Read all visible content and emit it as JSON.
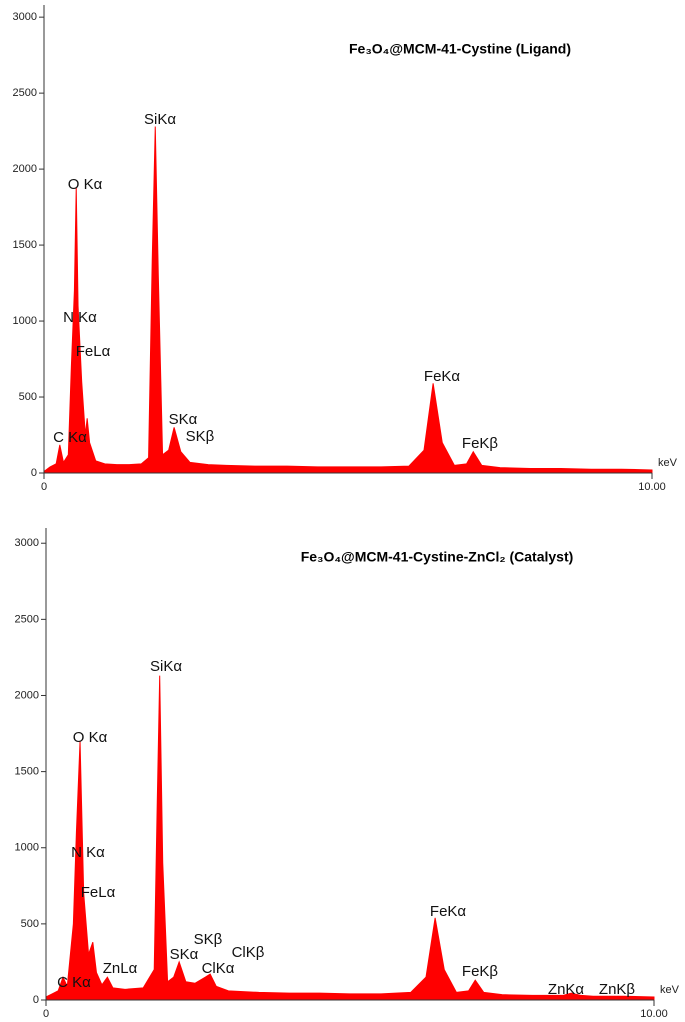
{
  "chart_data": [
    {
      "type": "area",
      "title": "Fe₃O₄@MCM-41-Cystine (Ligand)",
      "x_label": "keV",
      "color": "#ff0000",
      "x": [
        0.0,
        0.1,
        0.2,
        0.26,
        0.32,
        0.4,
        0.45,
        0.5,
        0.53,
        0.56,
        0.62,
        0.68,
        0.71,
        0.75,
        0.85,
        1.0,
        1.2,
        1.4,
        1.6,
        1.72,
        1.78,
        1.83,
        1.88,
        1.95,
        2.05,
        2.14,
        2.25,
        2.4,
        2.7,
        3.0,
        3.5,
        4.0,
        4.5,
        5.0,
        5.5,
        6.0,
        6.25,
        6.4,
        6.55,
        6.75,
        6.95,
        7.06,
        7.2,
        7.5,
        8.0,
        8.5,
        9.0,
        9.5,
        10.0
      ],
      "values": [
        10,
        40,
        60,
        185,
        70,
        120,
        700,
        1200,
        1880,
        1100,
        600,
        250,
        360,
        200,
        80,
        60,
        55,
        55,
        60,
        100,
        1400,
        2280,
        1300,
        120,
        150,
        300,
        140,
        70,
        55,
        50,
        45,
        45,
        40,
        40,
        40,
        45,
        150,
        590,
        200,
        50,
        60,
        140,
        50,
        35,
        30,
        30,
        25,
        25,
        20
      ],
      "xlim": [
        0,
        10
      ],
      "xticks": [
        0,
        {
          "value": 10,
          "label": "10.00"
        }
      ],
      "ylim": [
        0,
        3080
      ],
      "yticks": [
        0,
        500,
        1000,
        1500,
        2000,
        2500,
        3000
      ],
      "annotations": [
        "SiKα",
        "O Kα",
        "N Kα",
        "FeLα",
        "FeKα",
        "SKα",
        "SKβ",
        "C Kα",
        "FeKβ"
      ]
    },
    {
      "type": "area",
      "title": "Fe₃O₄@MCM-41-Cystine-ZnCl₂ (Catalyst)",
      "x_label": "keV",
      "color": "#ff0000",
      "x": [
        0.0,
        0.1,
        0.2,
        0.28,
        0.35,
        0.45,
        0.5,
        0.56,
        0.62,
        0.7,
        0.77,
        0.83,
        0.92,
        1.01,
        1.1,
        1.3,
        1.6,
        1.78,
        1.83,
        1.87,
        1.92,
        2.0,
        2.1,
        2.19,
        2.3,
        2.45,
        2.62,
        2.7,
        2.8,
        3.0,
        3.5,
        4.0,
        4.5,
        5.0,
        5.5,
        6.0,
        6.25,
        6.4,
        6.55,
        6.75,
        6.95,
        7.06,
        7.2,
        7.5,
        8.0,
        8.5,
        8.64,
        8.8,
        9.0,
        9.5,
        10.0
      ],
      "values": [
        20,
        40,
        60,
        150,
        90,
        500,
        1100,
        1700,
        700,
        300,
        380,
        180,
        100,
        150,
        80,
        70,
        80,
        200,
        1300,
        2130,
        900,
        120,
        150,
        250,
        120,
        110,
        150,
        170,
        90,
        60,
        50,
        45,
        45,
        40,
        40,
        50,
        150,
        540,
        200,
        50,
        60,
        130,
        50,
        35,
        30,
        30,
        45,
        30,
        25,
        25,
        20
      ],
      "xlim": [
        0,
        10
      ],
      "xticks": [
        0,
        {
          "value": 10,
          "label": "10.00"
        }
      ],
      "ylim": [
        0,
        3100
      ],
      "yticks": [
        0,
        500,
        1000,
        1500,
        2000,
        2500,
        3000
      ],
      "annotations": [
        "SiKα",
        "O Kα",
        "N Kα",
        "FeLα",
        "FeKα",
        "SKβ",
        "ClKβ",
        "SKα",
        "ClKα",
        "ZnLα",
        "C Kα",
        "FeKβ",
        "ZnKα",
        "ZnKβ"
      ]
    }
  ]
}
